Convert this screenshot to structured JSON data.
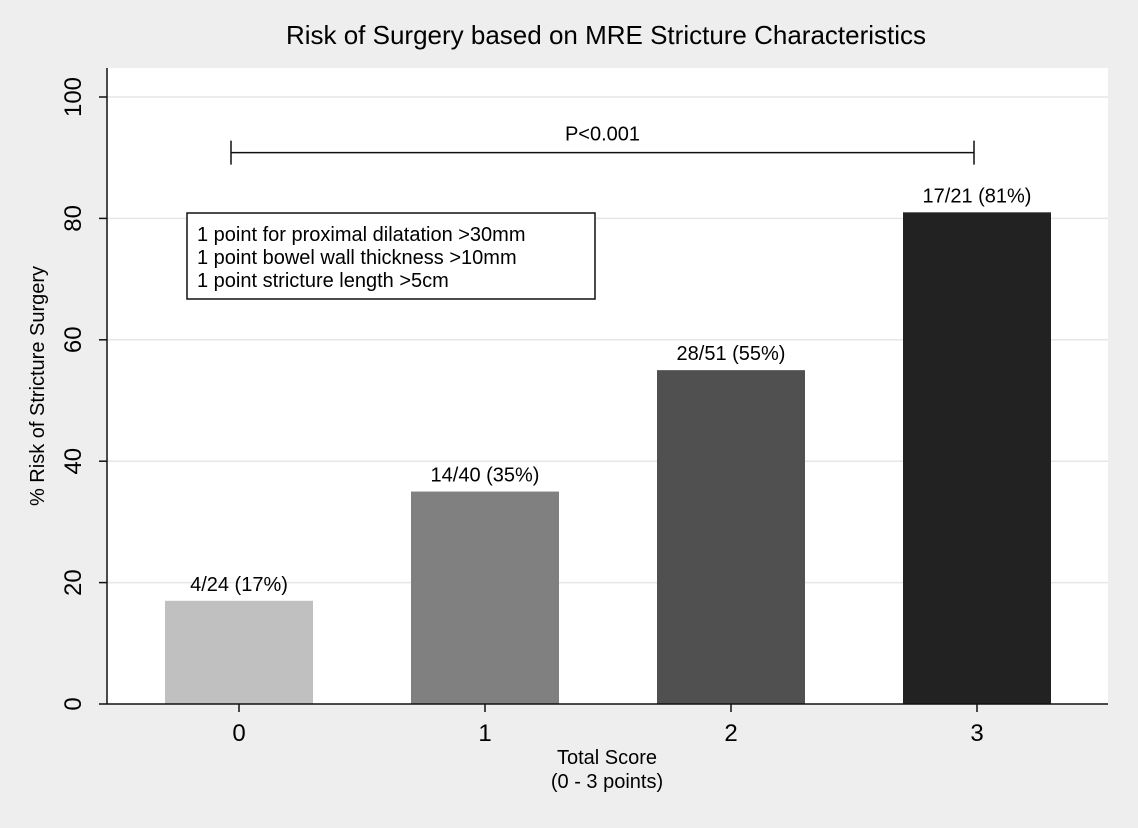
{
  "chart_data": {
    "type": "bar",
    "title": "Risk of Surgery based on MRE Stricture Characteristics",
    "xlabel": "Total Score",
    "xlabel_sub": "(0 - 3 points)",
    "ylabel": "% Risk of Stricture Surgery",
    "ylim": [
      0,
      100
    ],
    "yticks": [
      0,
      20,
      40,
      60,
      80,
      100
    ],
    "grid": "horizontal",
    "categories": [
      "0",
      "1",
      "2",
      "3"
    ],
    "values": [
      17,
      35,
      55,
      81
    ],
    "data_labels": [
      "4/24 (17%)",
      "14/40 (35%)",
      "28/51 (55%)",
      "17/21 (81%)"
    ],
    "bar_colors": [
      "#c0c0c0",
      "#808080",
      "#505050",
      "#222222"
    ],
    "significance": {
      "label": "P<0.001",
      "from_category": "0",
      "to_category": "3",
      "y_value": 91
    },
    "note_box": {
      "lines": [
        "1 point for proximal dilatation >30mm",
        "1 point bowel wall thickness >10mm",
        "1 point stricture length >5cm"
      ]
    }
  }
}
